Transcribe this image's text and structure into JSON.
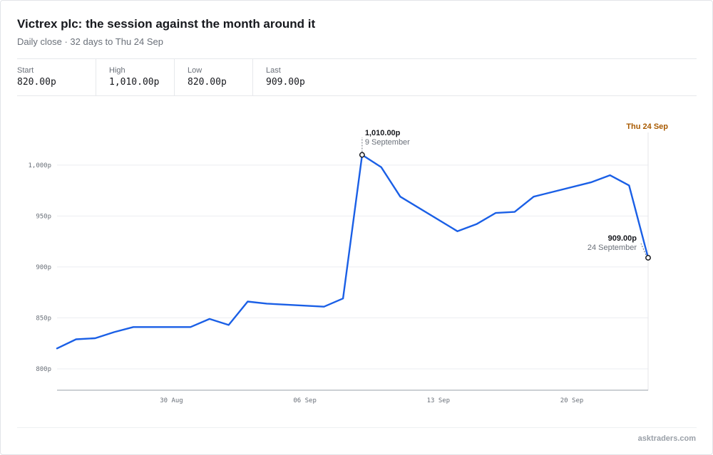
{
  "header": {
    "title": "Victrex plc: the session against the month around it",
    "subtitle": "Daily close · 32 days to Thu 24 Sep"
  },
  "stats": [
    {
      "label": "Start",
      "value": "820.00p"
    },
    {
      "label": "High",
      "value": "1,010.00p"
    },
    {
      "label": "Low",
      "value": "820.00p"
    },
    {
      "label": "Last",
      "value": "909.00p"
    }
  ],
  "footer": {
    "source": "asktraders.com"
  },
  "colors": {
    "line": "#1a5fe6",
    "marker_label": "#a85a00",
    "grid": "#ebedf0"
  },
  "chart_data": {
    "type": "line",
    "title": "Victrex plc: the session against the month around it",
    "xlabel": "",
    "ylabel": "",
    "x": [
      "2020-08-24",
      "2020-08-25",
      "2020-08-26",
      "2020-08-27",
      "2020-08-28",
      "2020-08-31",
      "2020-09-01",
      "2020-09-02",
      "2020-09-03",
      "2020-09-04",
      "2020-09-07",
      "2020-09-08",
      "2020-09-09",
      "2020-09-10",
      "2020-09-11",
      "2020-09-14",
      "2020-09-15",
      "2020-09-16",
      "2020-09-17",
      "2020-09-18",
      "2020-09-21",
      "2020-09-22",
      "2020-09-23",
      "2020-09-24"
    ],
    "series": [
      {
        "values": [
          820,
          829,
          830,
          836,
          841,
          841,
          849,
          843,
          866,
          864,
          861,
          869,
          1010,
          998,
          969,
          935,
          942,
          953,
          954,
          969,
          983,
          990,
          980,
          909
        ]
      }
    ],
    "x_ticks": [
      {
        "date": "2020-08-30",
        "label": "30 Aug"
      },
      {
        "date": "2020-09-06",
        "label": "06 Sep"
      },
      {
        "date": "2020-09-13",
        "label": "13 Sep"
      },
      {
        "date": "2020-09-20",
        "label": "20 Sep"
      }
    ],
    "y_ticks": [
      {
        "value": 800,
        "label": "800p"
      },
      {
        "value": 850,
        "label": "850p"
      },
      {
        "value": 900,
        "label": "900p"
      },
      {
        "value": 950,
        "label": "950p"
      },
      {
        "value": 1000,
        "label": "1,000p"
      }
    ],
    "xlim": [
      "2020-08-24",
      "2020-09-24"
    ],
    "ylim": [
      779,
      1046
    ],
    "grid": true,
    "annotations": [
      {
        "date": "2020-09-09",
        "value": 1010,
        "value_label": "1,010.00p",
        "date_label": "9 September",
        "side": "right"
      },
      {
        "date": "2020-09-24",
        "value": 909,
        "value_label": "909.00p",
        "date_label": "24 September",
        "side": "left"
      }
    ],
    "marker": {
      "date": "2020-09-24",
      "label": "Thu 24 Sep"
    }
  }
}
